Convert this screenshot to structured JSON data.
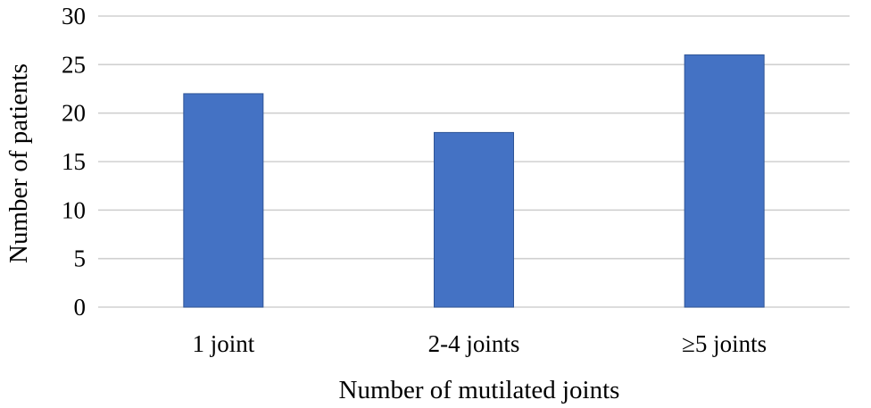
{
  "chart_data": {
    "type": "bar",
    "categories": [
      "1 joint",
      "2-4 joints",
      "≥5 joints"
    ],
    "values": [
      22,
      18,
      26
    ],
    "xlabel": "Number of mutilated joints",
    "ylabel": "Number of patients",
    "ylim": [
      0,
      30
    ],
    "yticks": [
      0,
      5,
      10,
      15,
      20,
      25,
      30
    ],
    "grid": true,
    "legend": "none",
    "bar_color": "#4472c4"
  }
}
